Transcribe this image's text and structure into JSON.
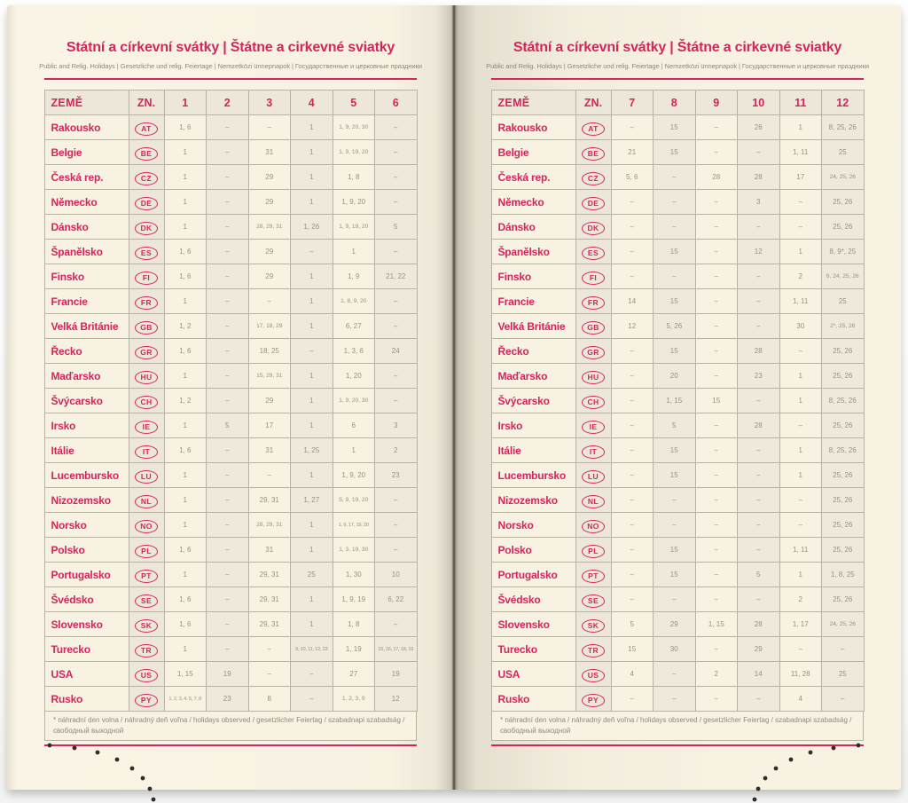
{
  "colors": {
    "accent_magenta": "#d3265d",
    "paper_cream": "#f8f2e3"
  },
  "page": {
    "title": "Státní a církevní svátky | Štátne a cirkevné sviatky",
    "subtitle": "Public and Relig. Holidays | Gesetzliche und relig. Feiertage | Nemzetközi ünnepnapok | Государственные и церковные праздники",
    "header": {
      "country": "ZEMĚ",
      "code": "ZN."
    },
    "footnote_line1": "* náhradní den volna / náhradný deň voľna / holidays observed / gesetzlicher Feiertag / szabadnapi szabadság /",
    "footnote_line2": "свободный выходной"
  },
  "left_table": {
    "months": [
      "1",
      "2",
      "3",
      "4",
      "5",
      "6"
    ],
    "rows": [
      {
        "country": "Rakousko",
        "code": "AT",
        "values": [
          "1, 6",
          "–",
          "–",
          "1",
          "1, 9, 20, 30",
          "–"
        ]
      },
      {
        "country": "Belgie",
        "code": "BE",
        "values": [
          "1",
          "–",
          "31",
          "1",
          "1, 9, 19, 20",
          "–"
        ]
      },
      {
        "country": "Česká rep.",
        "code": "CZ",
        "values": [
          "1",
          "–",
          "29",
          "1",
          "1, 8",
          "–"
        ]
      },
      {
        "country": "Německo",
        "code": "DE",
        "values": [
          "1",
          "–",
          "29",
          "1",
          "1, 9, 20",
          "–"
        ]
      },
      {
        "country": "Dánsko",
        "code": "DK",
        "values": [
          "1",
          "–",
          "28, 29, 31",
          "1, 26",
          "1, 9, 19, 20",
          "5"
        ]
      },
      {
        "country": "Španělsko",
        "code": "ES",
        "values": [
          "1, 6",
          "–",
          "29",
          "–",
          "1",
          "–"
        ]
      },
      {
        "country": "Finsko",
        "code": "FI",
        "values": [
          "1, 6",
          "–",
          "29",
          "1",
          "1, 9",
          "21, 22"
        ]
      },
      {
        "country": "Francie",
        "code": "FR",
        "values": [
          "1",
          "–",
          "–",
          "1",
          "1, 8, 9, 20",
          "–"
        ]
      },
      {
        "country": "Velká Británie",
        "code": "GB",
        "values": [
          "1, 2",
          "–",
          "17, 18, 29",
          "1",
          "6, 27",
          "–"
        ]
      },
      {
        "country": "Řecko",
        "code": "GR",
        "values": [
          "1, 6",
          "–",
          "18, 25",
          "–",
          "1, 3, 6",
          "24"
        ]
      },
      {
        "country": "Maďarsko",
        "code": "HU",
        "values": [
          "1",
          "–",
          "15, 29, 31",
          "1",
          "1, 20",
          "–"
        ]
      },
      {
        "country": "Švýcarsko",
        "code": "CH",
        "values": [
          "1, 2",
          "–",
          "29",
          "1",
          "1, 9, 20, 30",
          "–"
        ]
      },
      {
        "country": "Irsko",
        "code": "IE",
        "values": [
          "1",
          "5",
          "17",
          "1",
          "6",
          "3"
        ]
      },
      {
        "country": "Itálie",
        "code": "IT",
        "values": [
          "1, 6",
          "–",
          "31",
          "1, 25",
          "1",
          "2"
        ]
      },
      {
        "country": "Lucembursko",
        "code": "LU",
        "values": [
          "1",
          "–",
          "–",
          "1",
          "1, 9, 20",
          "23"
        ]
      },
      {
        "country": "Nizozemsko",
        "code": "NL",
        "values": [
          "1",
          "–",
          "29, 31",
          "1, 27",
          "5, 9, 19, 20",
          "–"
        ]
      },
      {
        "country": "Norsko",
        "code": "NO",
        "values": [
          "1",
          "–",
          "28, 29, 31",
          "1",
          "1, 9, 17, 19, 20",
          "–"
        ]
      },
      {
        "country": "Polsko",
        "code": "PL",
        "values": [
          "1, 6",
          "–",
          "31",
          "1",
          "1, 3, 19, 30",
          "–"
        ]
      },
      {
        "country": "Portugalsko",
        "code": "PT",
        "values": [
          "1",
          "–",
          "29, 31",
          "25",
          "1, 30",
          "10"
        ]
      },
      {
        "country": "Švédsko",
        "code": "SE",
        "values": [
          "1, 6",
          "–",
          "29, 31",
          "1",
          "1, 9, 19",
          "6, 22"
        ]
      },
      {
        "country": "Slovensko",
        "code": "SK",
        "values": [
          "1, 6",
          "–",
          "29, 31",
          "1",
          "1, 8",
          "–"
        ]
      },
      {
        "country": "Turecko",
        "code": "TR",
        "values": [
          "1",
          "–",
          "–",
          "9, 10, 11, 12, 23",
          "1, 19",
          "15, 16, 17, 18, 19"
        ]
      },
      {
        "country": "USA",
        "code": "US",
        "values": [
          "1, 15",
          "19",
          "–",
          "–",
          "27",
          "19"
        ]
      },
      {
        "country": "Rusko",
        "code": "PY",
        "values": [
          "1, 2, 3, 4, 5, 7, 8",
          "23",
          "8",
          "–",
          "1, 2, 3, 9",
          "12"
        ]
      }
    ]
  },
  "right_table": {
    "months": [
      "7",
      "8",
      "9",
      "10",
      "11",
      "12"
    ],
    "rows": [
      {
        "country": "Rakousko",
        "code": "AT",
        "values": [
          "–",
          "15",
          "–",
          "26",
          "1",
          "8, 25, 26"
        ]
      },
      {
        "country": "Belgie",
        "code": "BE",
        "values": [
          "21",
          "15",
          "–",
          "–",
          "1, 11",
          "25"
        ]
      },
      {
        "country": "Česká rep.",
        "code": "CZ",
        "values": [
          "5, 6",
          "–",
          "28",
          "28",
          "17",
          "24, 25, 26"
        ]
      },
      {
        "country": "Německo",
        "code": "DE",
        "values": [
          "–",
          "–",
          "–",
          "3",
          "–",
          "25, 26"
        ]
      },
      {
        "country": "Dánsko",
        "code": "DK",
        "values": [
          "–",
          "–",
          "–",
          "–",
          "–",
          "25, 26"
        ]
      },
      {
        "country": "Španělsko",
        "code": "ES",
        "values": [
          "–",
          "15",
          "–",
          "12",
          "1",
          "8, 9*, 25"
        ]
      },
      {
        "country": "Finsko",
        "code": "FI",
        "values": [
          "–",
          "–",
          "–",
          "–",
          "2",
          "6, 24, 25, 26"
        ]
      },
      {
        "country": "Francie",
        "code": "FR",
        "values": [
          "14",
          "15",
          "–",
          "–",
          "1, 11",
          "25"
        ]
      },
      {
        "country": "Velká Británie",
        "code": "GB",
        "values": [
          "12",
          "5, 26",
          "–",
          "–",
          "30",
          "2*, 25, 26"
        ]
      },
      {
        "country": "Řecko",
        "code": "GR",
        "values": [
          "–",
          "15",
          "–",
          "28",
          "–",
          "25, 26"
        ]
      },
      {
        "country": "Maďarsko",
        "code": "HU",
        "values": [
          "–",
          "20",
          "–",
          "23",
          "1",
          "25, 26"
        ]
      },
      {
        "country": "Švýcarsko",
        "code": "CH",
        "values": [
          "–",
          "1, 15",
          "15",
          "–",
          "1",
          "8, 25, 26"
        ]
      },
      {
        "country": "Irsko",
        "code": "IE",
        "values": [
          "–",
          "5",
          "–",
          "28",
          "–",
          "25, 26"
        ]
      },
      {
        "country": "Itálie",
        "code": "IT",
        "values": [
          "–",
          "15",
          "–",
          "–",
          "1",
          "8, 25, 26"
        ]
      },
      {
        "country": "Lucembursko",
        "code": "LU",
        "values": [
          "–",
          "15",
          "–",
          "–",
          "1",
          "25, 26"
        ]
      },
      {
        "country": "Nizozemsko",
        "code": "NL",
        "values": [
          "–",
          "–",
          "–",
          "–",
          "–",
          "25, 26"
        ]
      },
      {
        "country": "Norsko",
        "code": "NO",
        "values": [
          "–",
          "–",
          "–",
          "–",
          "–",
          "25, 26"
        ]
      },
      {
        "country": "Polsko",
        "code": "PL",
        "values": [
          "–",
          "15",
          "–",
          "–",
          "1, 11",
          "25, 26"
        ]
      },
      {
        "country": "Portugalsko",
        "code": "PT",
        "values": [
          "–",
          "15",
          "–",
          "5",
          "1",
          "1, 8, 25"
        ]
      },
      {
        "country": "Švédsko",
        "code": "SE",
        "values": [
          "–",
          "–",
          "–",
          "–",
          "2",
          "25, 26"
        ]
      },
      {
        "country": "Slovensko",
        "code": "SK",
        "values": [
          "5",
          "29",
          "1, 15",
          "28",
          "1, 17",
          "24, 25, 26"
        ]
      },
      {
        "country": "Turecko",
        "code": "TR",
        "values": [
          "15",
          "30",
          "–",
          "29",
          "–",
          "–"
        ]
      },
      {
        "country": "USA",
        "code": "US",
        "values": [
          "4",
          "–",
          "2",
          "14",
          "11, 28",
          "25"
        ]
      },
      {
        "country": "Rusko",
        "code": "PY",
        "values": [
          "–",
          "–",
          "–",
          "–",
          "4",
          "–"
        ]
      }
    ]
  }
}
